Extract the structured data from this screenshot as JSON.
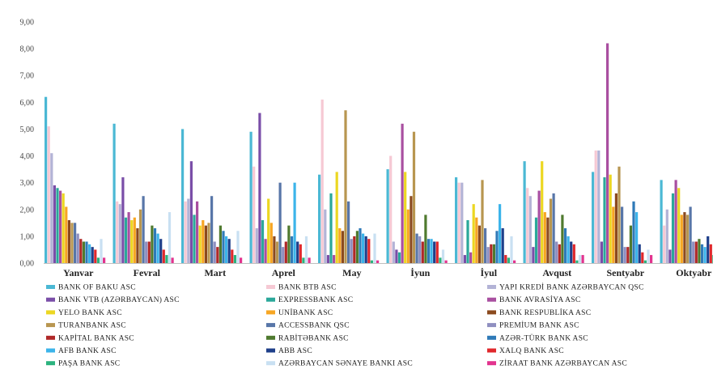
{
  "chart_data": {
    "type": "bar",
    "title": "",
    "xlabel": "",
    "ylabel": "",
    "ylim": [
      0,
      9
    ],
    "yticks": [
      "0,00",
      "1,00",
      "2,00",
      "3,00",
      "4,00",
      "5,00",
      "6,00",
      "7,00",
      "8,00",
      "9,00"
    ],
    "grid": false,
    "legend_position": "bottom",
    "categories": [
      "Yanvar",
      "Fevral",
      "Mart",
      "Aprel",
      "May",
      "İyun",
      "İyul",
      "Avqust",
      "Sentyabr",
      "Oktyabr"
    ],
    "series": [
      {
        "name": "BANK OF BAKU ASC",
        "color": "#4bb8d4",
        "values": [
          6.2,
          5.2,
          5.0,
          4.9,
          3.3,
          3.5,
          3.2,
          3.8,
          3.4,
          3.1
        ]
      },
      {
        "name": "BANK BTB ASC",
        "color": "#f6c9d4",
        "values": [
          5.1,
          2.3,
          2.3,
          3.6,
          6.1,
          4.0,
          3.0,
          2.8,
          4.2,
          1.4
        ]
      },
      {
        "name": "YAPI KREDİ BANK AZƏRBAYCAN QSC",
        "color": "#b3b3d6",
        "values": [
          4.1,
          2.2,
          2.4,
          1.3,
          2.0,
          0.8,
          3.0,
          2.5,
          4.2,
          2.0
        ]
      },
      {
        "name": "BANK VTB (AZƏRBAYCAN) ASC",
        "color": "#7a4ea8",
        "values": [
          2.9,
          3.2,
          3.8,
          5.6,
          0.3,
          0.5,
          0.3,
          0.6,
          0.8,
          0.5
        ]
      },
      {
        "name": "EXPRESSBANK ASC",
        "color": "#2ba89a",
        "values": [
          2.8,
          1.7,
          1.8,
          1.6,
          2.6,
          0.4,
          1.6,
          1.7,
          3.2,
          2.6
        ]
      },
      {
        "name": "BANK AVRASİYA ASC",
        "color": "#a94fa0",
        "values": [
          2.7,
          1.9,
          2.3,
          0.9,
          0.3,
          5.2,
          0.4,
          2.7,
          8.2,
          3.1
        ]
      },
      {
        "name": "YELO BANK ASC",
        "color": "#ecd722",
        "values": [
          2.6,
          1.6,
          1.4,
          2.4,
          3.4,
          3.4,
          2.2,
          3.8,
          3.3,
          2.8
        ]
      },
      {
        "name": "UNİBANK ASC",
        "color": "#f7a623",
        "values": [
          2.1,
          1.7,
          1.6,
          1.5,
          1.3,
          2.0,
          1.7,
          1.9,
          2.1,
          1.8
        ]
      },
      {
        "name": "BANK RESPUBLİKA ASC",
        "color": "#8b4a1e",
        "values": [
          1.6,
          1.3,
          1.4,
          1.0,
          1.2,
          2.5,
          1.4,
          1.7,
          2.6,
          1.9
        ]
      },
      {
        "name": "TURANBANK ASC",
        "color": "#b89650",
        "values": [
          1.5,
          2.0,
          1.5,
          0.8,
          5.7,
          4.9,
          3.1,
          2.4,
          3.6,
          1.8
        ]
      },
      {
        "name": "ACCESSBANK QSC",
        "color": "#5876a8",
        "values": [
          1.5,
          2.5,
          2.5,
          3.0,
          2.3,
          1.1,
          1.3,
          2.6,
          2.1,
          2.1
        ]
      },
      {
        "name": "PREMİUM BANK ASC",
        "color": "#8f8fc0",
        "values": [
          1.1,
          0.8,
          0.8,
          0.6,
          0.9,
          1.0,
          0.6,
          0.8,
          0.6,
          0.8
        ]
      },
      {
        "name": "KAPİTAL BANK ASC",
        "color": "#b02828",
        "values": [
          0.9,
          0.8,
          0.6,
          0.8,
          1.0,
          0.8,
          0.7,
          0.7,
          0.6,
          0.8
        ]
      },
      {
        "name": "RABİTƏBANK ASC",
        "color": "#4f7a2f",
        "values": [
          0.8,
          1.4,
          1.4,
          1.4,
          1.2,
          1.8,
          0.7,
          1.8,
          1.4,
          0.9
        ]
      },
      {
        "name": "AZƏR-TÜRK BANK ASC",
        "color": "#2f7ab8",
        "values": [
          0.8,
          1.3,
          1.2,
          1.0,
          1.3,
          0.9,
          1.2,
          1.3,
          2.3,
          0.7
        ]
      },
      {
        "name": "AFB BANK ASC",
        "color": "#3cb4ea",
        "values": [
          0.7,
          1.1,
          1.0,
          3.0,
          1.1,
          0.9,
          2.2,
          1.0,
          1.9,
          0.6
        ]
      },
      {
        "name": "ABB ASC",
        "color": "#1f3f8a",
        "values": [
          0.6,
          0.9,
          0.9,
          0.8,
          1.0,
          0.8,
          1.3,
          0.8,
          0.7,
          1.0
        ]
      },
      {
        "name": "XALQ BANK ASC",
        "color": "#e0282c",
        "values": [
          0.5,
          0.5,
          0.5,
          0.7,
          0.9,
          0.8,
          0.3,
          0.7,
          0.4,
          0.7
        ]
      },
      {
        "name": "PAŞA BANK ASC",
        "color": "#2bb37e",
        "values": [
          0.2,
          0.3,
          0.3,
          0.2,
          0.1,
          0.2,
          0.2,
          0.1,
          0.1,
          0.3
        ]
      },
      {
        "name": "AZƏRBAYCAN SƏNAYE BANKI ASC",
        "color": "#c9e0f2",
        "values": [
          0.9,
          1.9,
          1.2,
          1.0,
          1.1,
          0.5,
          1.0,
          0.3,
          0.5,
          0.6
        ]
      },
      {
        "name": "ZİRAAT BANK AZƏRBAYCAN ASC",
        "color": "#e2338e",
        "values": [
          0.2,
          0.2,
          0.2,
          0.2,
          0.1,
          0.1,
          0.1,
          0.3,
          0.3,
          0.2
        ]
      }
    ]
  }
}
